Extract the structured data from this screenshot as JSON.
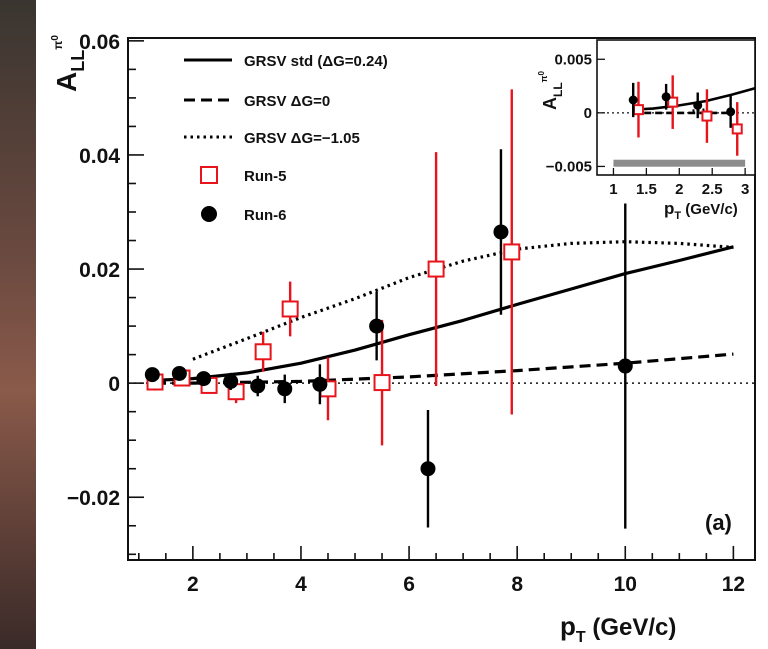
{
  "chart_data": [
    {
      "type": "scatter",
      "title": "",
      "xlabel": "p_T (GeV/c)",
      "ylabel": "A_LL^{π0}",
      "panel_label": "(a)",
      "xlim": [
        0.8,
        12.4
      ],
      "ylim": [
        -0.031,
        0.0605
      ],
      "xticks": [
        2,
        4,
        6,
        8,
        10,
        12
      ],
      "yticks": [
        -0.02,
        0,
        0.02,
        0.04,
        0.06
      ],
      "ytick_labels": [
        "−0.02",
        "0",
        "0.02",
        "0.04",
        "0.06"
      ],
      "legend_position": "top-left",
      "curves": [
        {
          "name": "GRSV std (ΔG=0.24)",
          "style": "solid",
          "x": [
            1.3,
            2,
            3,
            4,
            5,
            6,
            7,
            8,
            9,
            10,
            11,
            12
          ],
          "y": [
            0.0005,
            0.0008,
            0.0018,
            0.0035,
            0.0058,
            0.0085,
            0.011,
            0.0138,
            0.0165,
            0.0192,
            0.0215,
            0.0239
          ]
        },
        {
          "name": "GRSV ΔG=0",
          "style": "dashed",
          "x": [
            1.3,
            2,
            4,
            6,
            8,
            10,
            12
          ],
          "y": [
            0,
            0,
            0.0003,
            0.0011,
            0.0022,
            0.0035,
            0.0051
          ]
        },
        {
          "name": "GRSV ΔG=−1.05",
          "style": "dotted",
          "x": [
            2,
            3,
            4,
            5,
            6,
            7,
            8,
            9,
            10,
            11,
            12
          ],
          "y": [
            0.0042,
            0.0078,
            0.0115,
            0.0148,
            0.0185,
            0.0214,
            0.0235,
            0.0245,
            0.0248,
            0.0245,
            0.0238
          ]
        }
      ],
      "series": [
        {
          "name": "Run-5",
          "marker": "open-square",
          "color": "#e8141c",
          "points": [
            {
              "x": 1.3,
              "y": 0.0002,
              "err": 0.0015
            },
            {
              "x": 1.8,
              "y": 0.0009,
              "err": 0.0012
            },
            {
              "x": 2.3,
              "y": -0.0004,
              "err": 0.0014
            },
            {
              "x": 2.8,
              "y": -0.0015,
              "err": 0.002
            },
            {
              "x": 3.3,
              "y": 0.0055,
              "err": 0.0035
            },
            {
              "x": 3.8,
              "y": 0.013,
              "err": 0.0048
            },
            {
              "x": 4.5,
              "y": -0.001,
              "err": 0.0055
            },
            {
              "x": 5.5,
              "y": 0.0001,
              "err": 0.011
            },
            {
              "x": 6.5,
              "y": 0.02,
              "err": 0.0205
            },
            {
              "x": 7.9,
              "y": 0.023,
              "err": 0.0285
            }
          ]
        },
        {
          "name": "Run-6",
          "marker": "filled-circle",
          "color": "#000000",
          "points": [
            {
              "x": 1.25,
              "y": 0.0015,
              "err": 0.001
            },
            {
              "x": 1.75,
              "y": 0.0017,
              "err": 0.001
            },
            {
              "x": 2.2,
              "y": 0.0008,
              "err": 0.0012
            },
            {
              "x": 2.7,
              "y": 0.0003,
              "err": 0.0015
            },
            {
              "x": 3.2,
              "y": -0.0005,
              "err": 0.0018
            },
            {
              "x": 3.7,
              "y": -0.001,
              "err": 0.0025
            },
            {
              "x": 4.35,
              "y": -0.0002,
              "err": 0.0035
            },
            {
              "x": 5.4,
              "y": 0.01,
              "err": 0.006
            },
            {
              "x": 6.35,
              "y": -0.015,
              "err": 0.0103
            },
            {
              "x": 7.7,
              "y": 0.0265,
              "err": 0.0145
            },
            {
              "x": 10.0,
              "y": 0.003,
              "err": 0.0285
            }
          ]
        }
      ]
    },
    {
      "type": "scatter",
      "title": "",
      "xlabel": "p_T (GeV/c)",
      "ylabel": "A_LL^{π0}",
      "xlim": [
        0.75,
        3.15
      ],
      "ylim": [
        -0.0058,
        0.0068
      ],
      "xticks": [
        1,
        1.5,
        2,
        2.5,
        3
      ],
      "xtick_labels": [
        "1",
        "1.5",
        "2",
        "2.5",
        "3"
      ],
      "yticks": [
        -0.005,
        0,
        0.005
      ],
      "ytick_labels": [
        "−0.005",
        "0",
        "0.005"
      ],
      "systematic_band": {
        "x": [
          1.0,
          3.0
        ],
        "y": -0.0047,
        "color": "#8c8c8c"
      },
      "curves": [
        {
          "name": "GRSV std (ΔG=0.24)",
          "style": "solid",
          "x": [
            1.3,
            1.6,
            2.0,
            2.4,
            2.8,
            3.15
          ],
          "y": [
            0.0003,
            0.0004,
            0.0007,
            0.0011,
            0.0017,
            0.0023
          ]
        },
        {
          "name": "GRSV ΔG=0",
          "style": "dashed",
          "x": [
            1.3,
            2.0,
            2.8
          ],
          "y": [
            0,
            0,
            0
          ]
        },
        {
          "name": "GRSV ΔG=−1.05",
          "style": "dotted",
          "x": [
            2.2,
            2.4
          ],
          "y": [
            0.0002,
            0.0003
          ]
        }
      ],
      "series": [
        {
          "name": "Run-5",
          "marker": "open-square",
          "color": "#e8141c",
          "points": [
            {
              "x": 1.38,
              "y": 0.0003,
              "err": 0.0026
            },
            {
              "x": 1.9,
              "y": 0.001,
              "err": 0.0025
            },
            {
              "x": 2.42,
              "y": -0.0003,
              "err": 0.0025
            },
            {
              "x": 2.88,
              "y": -0.0015,
              "err": 0.0025
            }
          ]
        },
        {
          "name": "Run-6",
          "marker": "filled-circle",
          "color": "#000000",
          "points": [
            {
              "x": 1.3,
              "y": 0.0012,
              "err": 0.0016
            },
            {
              "x": 1.8,
              "y": 0.0015,
              "err": 0.0012
            },
            {
              "x": 2.28,
              "y": 0.0007,
              "err": 0.0012
            },
            {
              "x": 2.78,
              "y": 0.0001,
              "err": 0.0015
            }
          ]
        }
      ]
    }
  ]
}
